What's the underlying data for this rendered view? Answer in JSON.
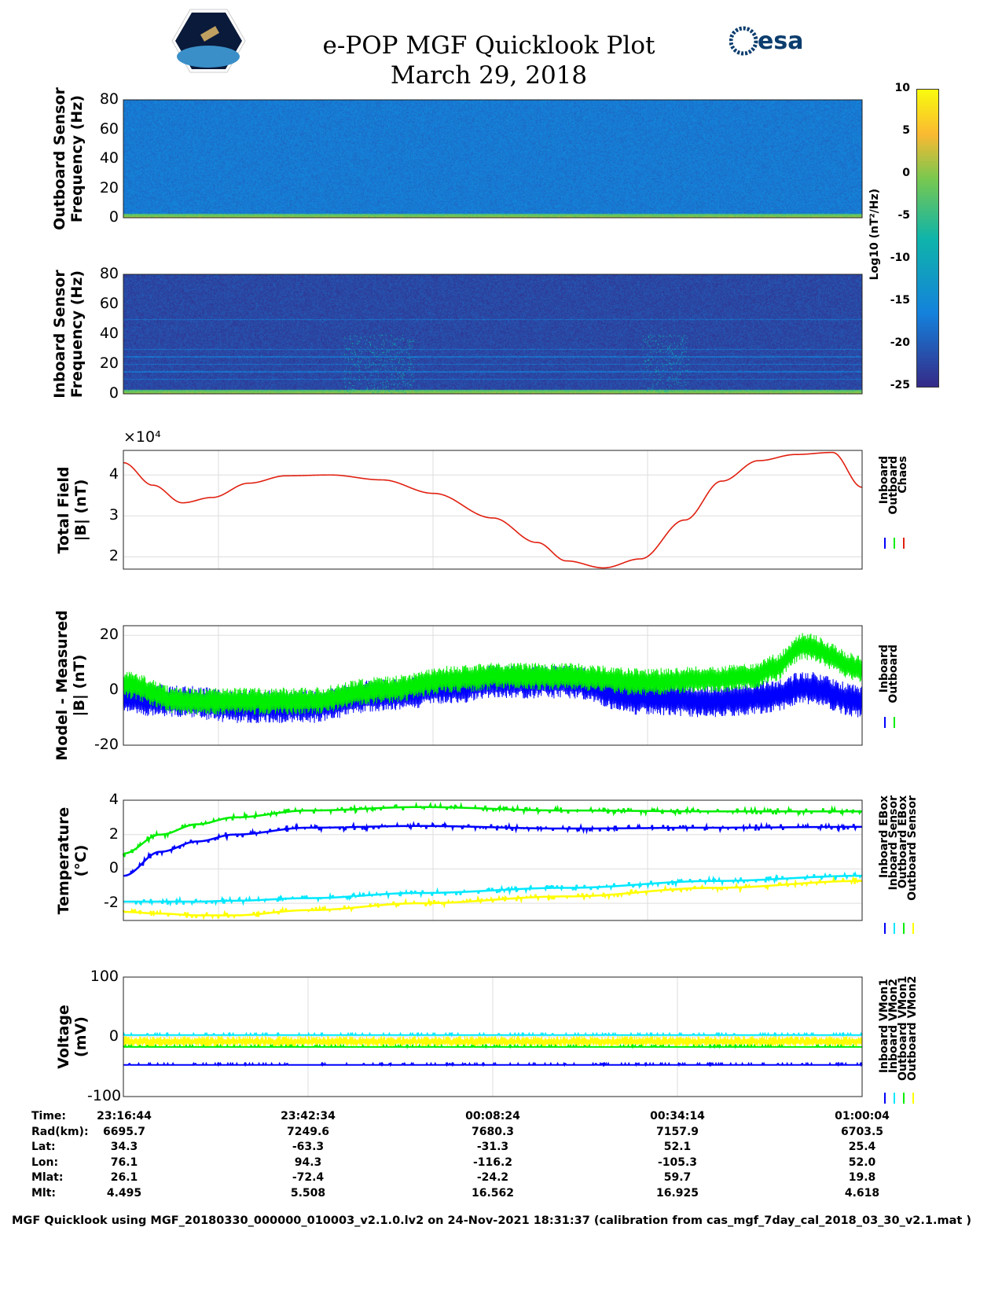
{
  "header": {
    "title": "e-POP MGF Quicklook Plot",
    "date": "March 29, 2018",
    "logo_left": "CASSIOPE",
    "logo_right": "esa"
  },
  "colors": {
    "inboard": "#0000ff",
    "outboard": "#00ee00",
    "chaos": "#e02010",
    "cyan": "#00e8ff",
    "yellow": "#ffff00"
  },
  "chart_data": [
    {
      "type": "heatmap",
      "name": "outboard-spectrogram",
      "ylabel": "Outboard Sensor\nFrequency (Hz)",
      "ylim": [
        0,
        80
      ],
      "yticks": [
        0,
        20,
        40,
        60,
        80
      ],
      "background_level": -17,
      "low_freq_level": 2
    },
    {
      "type": "heatmap",
      "name": "inboard-spectrogram",
      "ylabel": "Inboard Sensor\nFrequency (Hz)",
      "ylim": [
        0,
        80
      ],
      "yticks": [
        0,
        20,
        40,
        60,
        80
      ],
      "background_level": -22,
      "low_freq_level": 2,
      "line_frequencies": [
        10,
        15,
        20,
        25,
        30,
        50
      ]
    },
    {
      "type": "colorbar",
      "label": "Log10 (nT²/Hz)",
      "ticks": [
        10,
        5,
        0,
        -5,
        -10,
        -15,
        -20,
        -25
      ],
      "range": [
        -25,
        10
      ]
    },
    {
      "type": "line",
      "name": "total-field",
      "ylabel": "Total Field\n|B| (nT)",
      "exponent": "×10⁴",
      "ylim": [
        1.7,
        4.6
      ],
      "yticks": [
        2,
        3,
        4
      ],
      "x": [
        0,
        0.04,
        0.08,
        0.12,
        0.17,
        0.22,
        0.28,
        0.35,
        0.42,
        0.5,
        0.56,
        0.6,
        0.65,
        0.7,
        0.76,
        0.81,
        0.86,
        0.91,
        0.96,
        1
      ],
      "series": [
        {
          "name": "Chaos",
          "values": [
            4.3,
            3.75,
            3.32,
            3.45,
            3.8,
            3.98,
            4.0,
            3.88,
            3.55,
            2.95,
            2.35,
            1.9,
            1.73,
            1.95,
            2.9,
            3.85,
            4.35,
            4.5,
            4.55,
            3.7
          ]
        }
      ],
      "legend": [
        "Inboard",
        "Outboard",
        "Chaos"
      ]
    },
    {
      "type": "line",
      "name": "model-minus-measured",
      "ylabel": "Model - Measured\n|B| (nT)",
      "ylim": [
        -20,
        23.5
      ],
      "yticks": [
        20,
        0,
        -20
      ],
      "x": [
        0,
        0.08,
        0.15,
        0.25,
        0.35,
        0.45,
        0.5,
        0.6,
        0.7,
        0.8,
        0.85,
        0.88,
        0.92,
        1
      ],
      "series": [
        {
          "name": "Inboard",
          "values": [
            -3,
            -4,
            -6,
            -6,
            -2,
            1,
            3,
            3,
            -3,
            -4,
            -3,
            -2,
            1,
            -4
          ],
          "spread": 12
        },
        {
          "name": "Outboard",
          "values": [
            2,
            -4,
            -4,
            -4,
            0,
            4,
            5,
            5,
            3,
            4,
            5,
            8,
            16,
            8
          ],
          "spread": 10
        }
      ],
      "legend": [
        "Inboard",
        "Outboard"
      ]
    },
    {
      "type": "line",
      "name": "temperature",
      "ylabel": "Temperature\n(°C)",
      "ylim": [
        -3,
        4
      ],
      "yticks": [
        4,
        2,
        0,
        -2
      ],
      "x": [
        0,
        0.05,
        0.1,
        0.15,
        0.25,
        0.4,
        0.6,
        0.8,
        1
      ],
      "series": [
        {
          "name": "Inboard EBox",
          "values": [
            -0.4,
            1.0,
            1.6,
            2.0,
            2.4,
            2.5,
            2.35,
            2.4,
            2.45
          ]
        },
        {
          "name": "Inboard Sensor",
          "values": [
            -1.9,
            -1.9,
            -1.9,
            -1.85,
            -1.7,
            -1.4,
            -1.1,
            -0.7,
            -0.4
          ]
        },
        {
          "name": "Outboard EBox",
          "values": [
            0.9,
            2.0,
            2.6,
            3.0,
            3.4,
            3.6,
            3.4,
            3.35,
            3.35
          ]
        },
        {
          "name": "Outboard Sensor",
          "values": [
            -2.5,
            -2.6,
            -2.7,
            -2.7,
            -2.4,
            -2.0,
            -1.6,
            -1.1,
            -0.7
          ]
        }
      ],
      "legend": [
        "Inboard EBox",
        "Inboard Sensor",
        "Outboard EBox",
        "Outboard Sensor"
      ]
    },
    {
      "type": "line",
      "name": "voltage",
      "ylabel": "Voltage\n(mV)",
      "ylim": [
        -100,
        100
      ],
      "yticks": [
        100,
        0,
        -100
      ],
      "series": [
        {
          "name": "Inboard VMon1",
          "value": -47
        },
        {
          "name": "Inboard VMon2",
          "value": 3
        },
        {
          "name": "Outboard VMon1",
          "value": -17
        },
        {
          "name": "Outboard VMon2",
          "value": -8,
          "spread": 20
        }
      ],
      "legend": [
        "Inboard VMon1",
        "Inboard VMon2",
        "Outboard VMon1",
        "Outboard VMon2"
      ]
    }
  ],
  "table": {
    "rows": [
      {
        "label": "Time:",
        "values": [
          "23:16:44",
          "23:42:34",
          "00:08:24",
          "00:34:14",
          "01:00:04"
        ]
      },
      {
        "label": "Rad(km):",
        "values": [
          "6695.7",
          "7249.6",
          "7680.3",
          "7157.9",
          "6703.5"
        ]
      },
      {
        "label": "Lat:",
        "values": [
          "34.3",
          "-63.3",
          "-31.3",
          "52.1",
          "25.4"
        ]
      },
      {
        "label": "Lon:",
        "values": [
          "76.1",
          "94.3",
          "-116.2",
          "-105.3",
          "52.0"
        ]
      },
      {
        "label": "Mlat:",
        "values": [
          "26.1",
          "-72.4",
          "-24.2",
          "59.7",
          "19.8"
        ]
      },
      {
        "label": "Mlt:",
        "values": [
          "4.495",
          "5.508",
          "16.562",
          "16.925",
          "4.618"
        ]
      }
    ]
  },
  "footer": "MGF Quicklook using MGF_20180330_000000_010003_v2.1.0.lv2 on 24-Nov-2021 18:31:37 (calibration from cas_mgf_7day_cal_2018_03_30_v2.1.mat )"
}
